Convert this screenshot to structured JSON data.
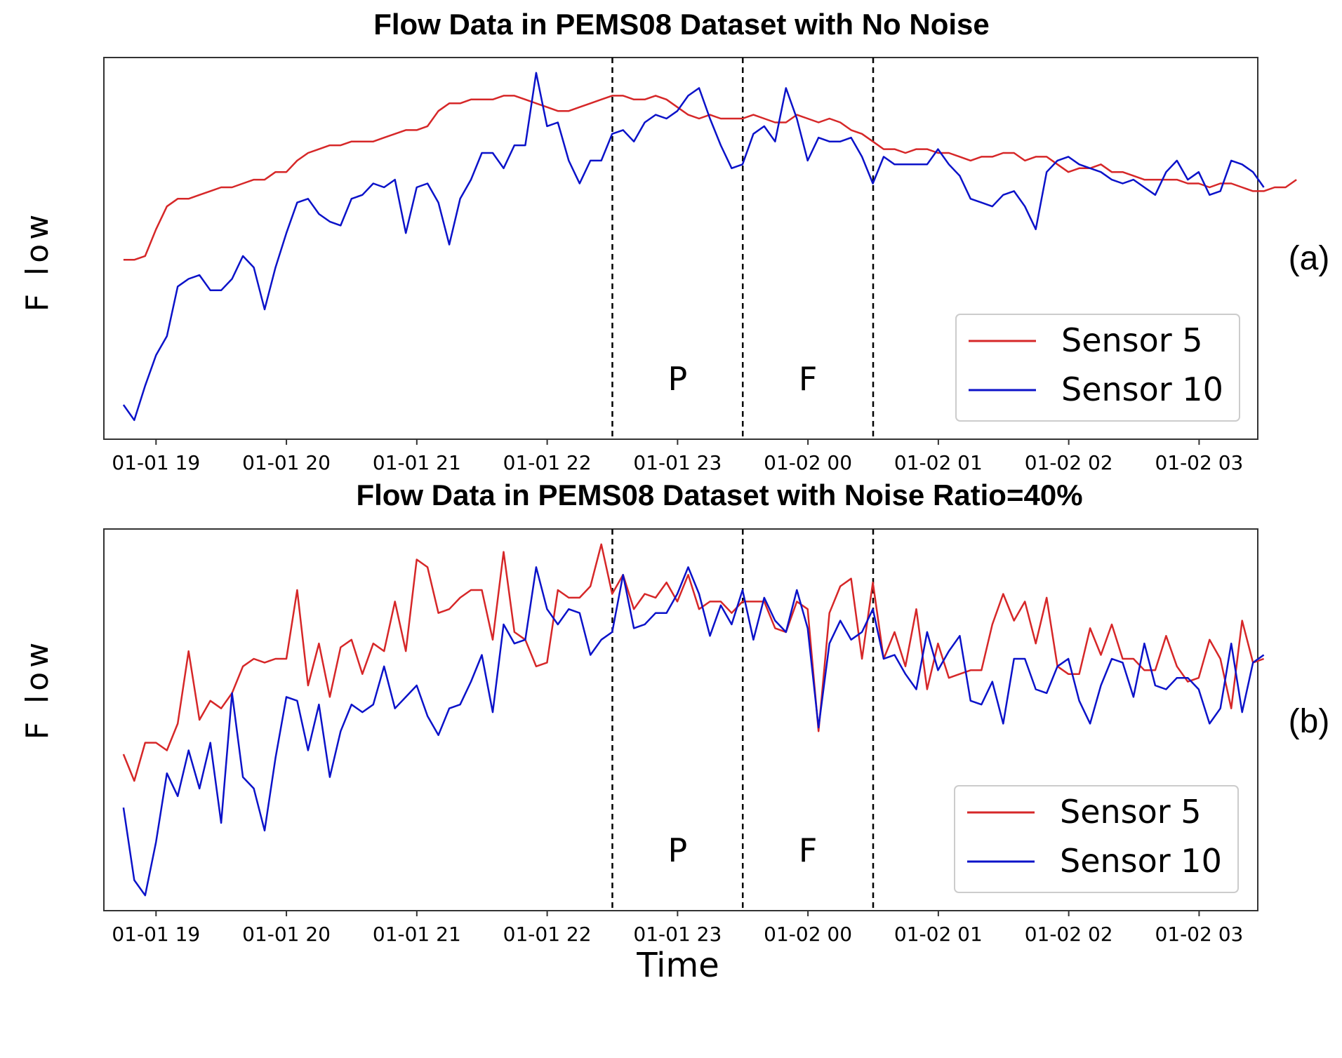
{
  "chart_data": [
    {
      "type": "line",
      "title": "Flow Data in PEMS08 Dataset with No Noise",
      "panel_label": "(a)",
      "xlabel": "",
      "ylabel": "F low",
      "xlim": [
        18.6,
        27.45
      ],
      "ylim": [
        0,
        100
      ],
      "x_ticks": [
        {
          "x": 19,
          "label": "01-01 19"
        },
        {
          "x": 20,
          "label": "01-01 20"
        },
        {
          "x": 21,
          "label": "01-01 21"
        },
        {
          "x": 22,
          "label": "01-01 22"
        },
        {
          "x": 23,
          "label": "01-01 23"
        },
        {
          "x": 24,
          "label": "01-02 00"
        },
        {
          "x": 25,
          "label": "01-02 01"
        },
        {
          "x": 26,
          "label": "01-02 02"
        },
        {
          "x": 27,
          "label": "01-02 03"
        }
      ],
      "vertical_lines": [
        22.5,
        23.5,
        24.5
      ],
      "region_labels": [
        {
          "x": 23.0,
          "label": "P"
        },
        {
          "x": 24.0,
          "label": "F"
        }
      ],
      "legend": {
        "placement": "bottom-right"
      },
      "grid": false,
      "series": [
        {
          "name": "Sensor 5",
          "color": "#d62728",
          "x_start": 18.75,
          "x_step": 0.0833,
          "values": [
            47,
            47,
            48,
            55,
            61,
            63,
            63,
            64,
            65,
            66,
            66,
            67,
            68,
            68,
            70,
            70,
            73,
            75,
            76,
            77,
            77,
            78,
            78,
            78,
            79,
            80,
            81,
            81,
            82,
            86,
            88,
            88,
            89,
            89,
            89,
            90,
            90,
            89,
            88,
            87,
            86,
            86,
            87,
            88,
            89,
            90,
            90,
            89,
            89,
            90,
            89,
            87,
            85,
            84,
            85,
            84,
            84,
            84,
            85,
            84,
            83,
            83,
            85,
            84,
            83,
            84,
            83,
            81,
            80,
            78,
            76,
            76,
            75,
            76,
            76,
            75,
            75,
            74,
            73,
            74,
            74,
            75,
            75,
            73,
            74,
            74,
            72,
            70,
            71,
            71,
            72,
            70,
            70,
            69,
            68,
            68,
            68,
            68,
            67,
            67,
            66,
            67,
            67,
            66,
            65,
            65,
            66,
            66,
            68
          ]
        },
        {
          "name": "Sensor 10",
          "color": "#0b12c9",
          "x_start": 18.75,
          "x_step": 0.0833,
          "values": [
            9,
            5,
            14,
            22,
            27,
            40,
            42,
            43,
            39,
            39,
            42,
            48,
            45,
            34,
            45,
            54,
            62,
            63,
            59,
            57,
            56,
            63,
            64,
            67,
            66,
            68,
            54,
            66,
            67,
            62,
            51,
            63,
            68,
            75,
            75,
            71,
            77,
            77,
            96,
            82,
            83,
            73,
            67,
            73,
            73,
            80,
            81,
            78,
            83,
            85,
            84,
            86,
            90,
            92,
            84,
            77,
            71,
            72,
            80,
            82,
            78,
            92,
            84,
            73,
            79,
            78,
            78,
            79,
            74,
            67,
            74,
            72,
            72,
            72,
            72,
            76,
            72,
            69,
            63,
            62,
            61,
            64,
            65,
            61,
            55,
            70,
            73,
            74,
            72,
            71,
            70,
            68,
            67,
            68,
            66,
            64,
            70,
            73,
            68,
            70,
            64,
            65,
            73,
            72,
            70,
            66
          ]
        }
      ]
    },
    {
      "type": "line",
      "title": "Flow Data in PEMS08 Dataset with Noise Ratio=40%",
      "panel_label": "(b)",
      "xlabel": "Time",
      "ylabel": "F low",
      "xlim": [
        18.6,
        27.45
      ],
      "ylim": [
        0,
        100
      ],
      "x_ticks": [
        {
          "x": 19,
          "label": "01-01 19"
        },
        {
          "x": 20,
          "label": "01-01 20"
        },
        {
          "x": 21,
          "label": "01-01 21"
        },
        {
          "x": 22,
          "label": "01-01 22"
        },
        {
          "x": 23,
          "label": "01-01 23"
        },
        {
          "x": 24,
          "label": "01-02 00"
        },
        {
          "x": 25,
          "label": "01-02 01"
        },
        {
          "x": 26,
          "label": "01-02 02"
        },
        {
          "x": 27,
          "label": "01-02 03"
        }
      ],
      "vertical_lines": [
        22.5,
        23.5,
        24.5
      ],
      "region_labels": [
        {
          "x": 23.0,
          "label": "P"
        },
        {
          "x": 24.0,
          "label": "F"
        }
      ],
      "legend": {
        "placement": "bottom-right"
      },
      "grid": false,
      "series": [
        {
          "name": "Sensor 5",
          "color": "#d62728",
          "x_start": 18.75,
          "x_step": 0.0833,
          "values": [
            41,
            34,
            44,
            44,
            42,
            49,
            68,
            50,
            55,
            53,
            57,
            64,
            66,
            65,
            66,
            66,
            84,
            59,
            70,
            56,
            69,
            71,
            62,
            70,
            68,
            81,
            68,
            92,
            90,
            78,
            79,
            82,
            84,
            84,
            71,
            94,
            73,
            71,
            64,
            65,
            84,
            82,
            82,
            85,
            96,
            83,
            88,
            79,
            83,
            82,
            86,
            81,
            88,
            79,
            81,
            81,
            78,
            81,
            81,
            81,
            74,
            73,
            81,
            79,
            47,
            78,
            85,
            87,
            66,
            86,
            66,
            73,
            64,
            79,
            58,
            70,
            61,
            62,
            63,
            63,
            75,
            83,
            76,
            81,
            70,
            82,
            64,
            62,
            62,
            74,
            67,
            75,
            66,
            66,
            63,
            63,
            72,
            64,
            60,
            61,
            71,
            66,
            53,
            76,
            65,
            66
          ]
        },
        {
          "name": "Sensor 10",
          "color": "#0b12c9",
          "x_start": 18.75,
          "x_step": 0.0833,
          "values": [
            27,
            8,
            4,
            18,
            36,
            30,
            42,
            32,
            44,
            23,
            57,
            35,
            32,
            21,
            40,
            56,
            55,
            42,
            54,
            35,
            47,
            54,
            52,
            54,
            64,
            53,
            56,
            59,
            51,
            46,
            53,
            54,
            60,
            67,
            52,
            75,
            70,
            71,
            90,
            79,
            75,
            79,
            78,
            67,
            71,
            73,
            88,
            74,
            75,
            78,
            78,
            83,
            90,
            83,
            72,
            80,
            75,
            84,
            71,
            82,
            76,
            73,
            84,
            74,
            48,
            70,
            76,
            71,
            73,
            79,
            66,
            67,
            62,
            58,
            73,
            63,
            68,
            72,
            55,
            54,
            60,
            49,
            66,
            66,
            58,
            57,
            64,
            66,
            55,
            49,
            59,
            66,
            65,
            56,
            70,
            59,
            58,
            61,
            61,
            58,
            49,
            53,
            70,
            52,
            65,
            67
          ]
        }
      ]
    }
  ]
}
